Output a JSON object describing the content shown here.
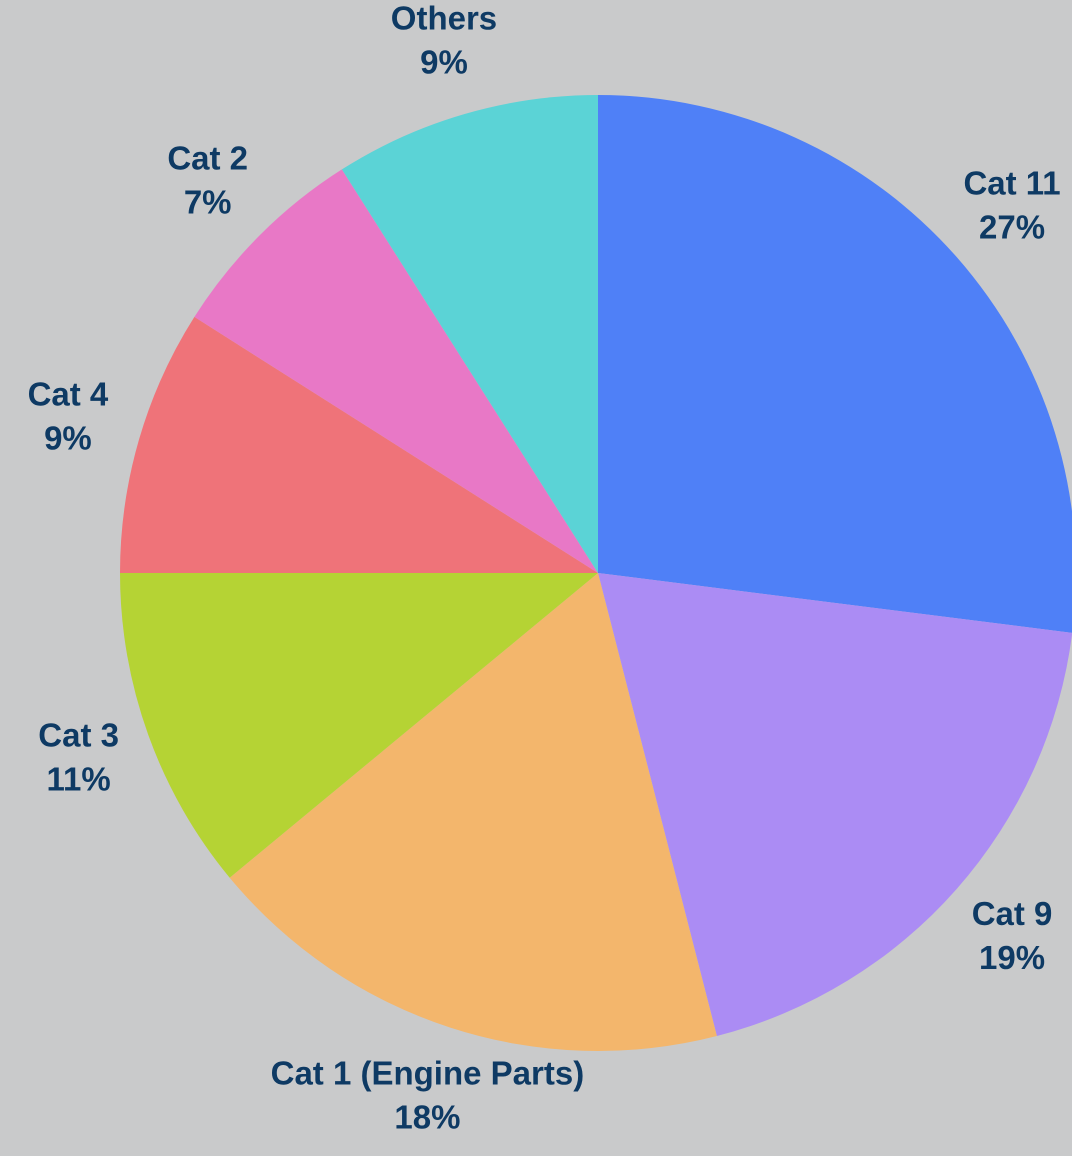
{
  "chart_data": {
    "type": "pie",
    "categories": [
      "Cat 11",
      "Cat 9",
      "Cat 1 (Engine Parts)",
      "Cat 3",
      "Cat 4",
      "Cat 2",
      "Others"
    ],
    "values": [
      27,
      19,
      18,
      11,
      9,
      7,
      9
    ],
    "value_labels": [
      "27%",
      "19%",
      "18%",
      "11%",
      "9%",
      "7%",
      "9%"
    ],
    "colors": [
      "#4f80f7",
      "#ab8cf4",
      "#f3b66c",
      "#b5d334",
      "#ef7379",
      "#e878c6",
      "#5bd3d6"
    ]
  }
}
